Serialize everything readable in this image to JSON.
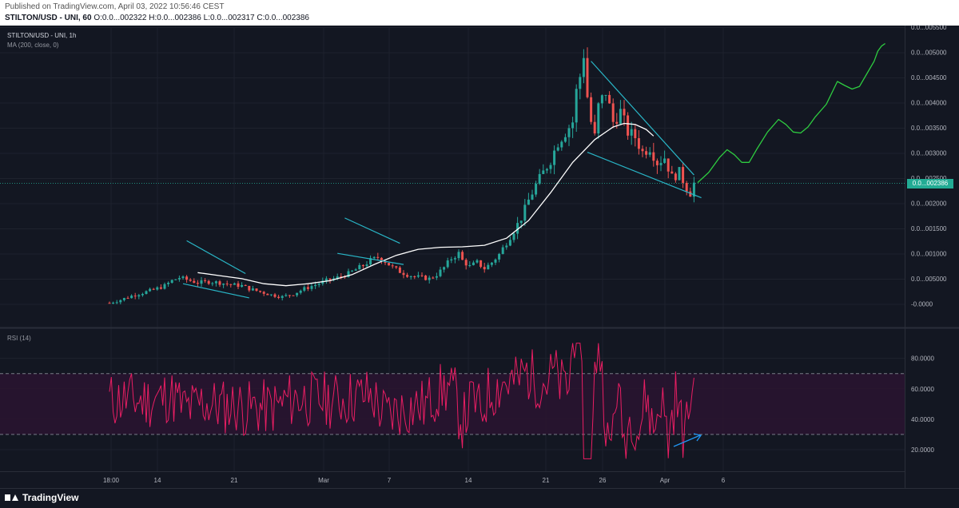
{
  "header": {
    "published": "Published on TradingView.com, April 03, 2022 10:56:46 CEST",
    "symbol": "STILTON/USD - UNI, 60",
    "ohlc": "O:0.0...002322 H:0.0...002386 L:0.0...002317 C:0.0...002386"
  },
  "price_pane": {
    "title": "STILTON/USD - UNI, 1h",
    "ma_legend": "MA (200, close, 0)",
    "last_price_label": "0.0...002386"
  },
  "rsi_pane": {
    "legend": "RSI (14)"
  },
  "footer": {
    "brand": "TradingView"
  },
  "colors": {
    "background": "#131722",
    "candle_up": "#26a69a",
    "candle_down": "#ef5350",
    "ma_line": "#ffffff",
    "trendlines": "#29b6c7",
    "projection": "#2ecc40",
    "rsi_line": "#e91e63",
    "rsi_band": "#2a1430",
    "price_badge": "#22ab94"
  },
  "chart_data": [
    {
      "type": "candlestick",
      "title": "STILTON/USD - UNI, 1h",
      "y_tick_labels": [
        "0.0...005500",
        "0.0...005000",
        "0.0...004500",
        "0.0...004000",
        "0.0...003500",
        "0.0...003000",
        "0.0...002500",
        "0.0...002000",
        "0.0...001500",
        "0.0...001000",
        "0.0...005000",
        "-0.0000"
      ],
      "x_tick_labels": [
        "18:00",
        "14",
        "21",
        "Mar",
        "7",
        "14",
        "21",
        "26",
        "Apr",
        "6"
      ],
      "price_path": [
        [
          0,
          0.02
        ],
        [
          3,
          0.08
        ],
        [
          6,
          0.16
        ],
        [
          9,
          0.22
        ],
        [
          12,
          0.28
        ],
        [
          15,
          0.36
        ],
        [
          17,
          0.46
        ],
        [
          19,
          0.52
        ],
        [
          21,
          0.48
        ],
        [
          24,
          0.42
        ],
        [
          27,
          0.44
        ],
        [
          30,
          0.42
        ],
        [
          33,
          0.38
        ],
        [
          36,
          0.36
        ],
        [
          38,
          0.3
        ],
        [
          41,
          0.24
        ],
        [
          44,
          0.18
        ],
        [
          47,
          0.14
        ],
        [
          50,
          0.2
        ],
        [
          53,
          0.3
        ],
        [
          56,
          0.38
        ],
        [
          59,
          0.46
        ],
        [
          62,
          0.52
        ],
        [
          65,
          0.6
        ],
        [
          67,
          0.68
        ],
        [
          69,
          0.76
        ],
        [
          71,
          0.86
        ],
        [
          73,
          0.92
        ],
        [
          75,
          0.84
        ],
        [
          77,
          0.72
        ],
        [
          79,
          0.64
        ],
        [
          81,
          0.58
        ],
        [
          83,
          0.54
        ],
        [
          85,
          0.52
        ],
        [
          87,
          0.5
        ],
        [
          89,
          0.58
        ],
        [
          91,
          0.72
        ],
        [
          93,
          0.9
        ],
        [
          95,
          1.0
        ],
        [
          96,
          0.86
        ],
        [
          98,
          0.74
        ],
        [
          100,
          0.82
        ],
        [
          102,
          0.7
        ],
        [
          104,
          0.82
        ],
        [
          106,
          0.98
        ],
        [
          108,
          1.22
        ],
        [
          110,
          1.45
        ],
        [
          112,
          1.7
        ],
        [
          114,
          2.05
        ],
        [
          116,
          2.35
        ],
        [
          118,
          2.6
        ],
        [
          120,
          2.85
        ],
        [
          122,
          3.2
        ],
        [
          124,
          3.4
        ],
        [
          126,
          3.6
        ],
        [
          127,
          4.2
        ],
        [
          128,
          4.5
        ],
        [
          129,
          4.95
        ],
        [
          130,
          4.1
        ],
        [
          131,
          3.6
        ],
        [
          132,
          3.3
        ],
        [
          133,
          3.9
        ],
        [
          135,
          4.2
        ],
        [
          137,
          3.6
        ],
        [
          139,
          3.8
        ],
        [
          141,
          3.4
        ],
        [
          143,
          3.3
        ],
        [
          145,
          3.0
        ],
        [
          147,
          3.1
        ],
        [
          149,
          2.8
        ],
        [
          151,
          2.9
        ],
        [
          153,
          2.5
        ],
        [
          155,
          2.6
        ],
        [
          157,
          2.3
        ],
        [
          158,
          2.2
        ],
        [
          159,
          2.386
        ]
      ],
      "ma_200": [
        [
          24,
          0.62
        ],
        [
          30,
          0.56
        ],
        [
          36,
          0.5
        ],
        [
          42,
          0.4
        ],
        [
          48,
          0.36
        ],
        [
          54,
          0.4
        ],
        [
          60,
          0.46
        ],
        [
          66,
          0.58
        ],
        [
          72,
          0.78
        ],
        [
          78,
          0.96
        ],
        [
          84,
          1.08
        ],
        [
          90,
          1.12
        ],
        [
          96,
          1.13
        ],
        [
          102,
          1.16
        ],
        [
          108,
          1.3
        ],
        [
          114,
          1.65
        ],
        [
          120,
          2.2
        ],
        [
          126,
          2.8
        ],
        [
          132,
          3.25
        ],
        [
          137,
          3.5
        ],
        [
          140,
          3.57
        ],
        [
          143,
          3.55
        ],
        [
          146,
          3.45
        ],
        [
          148,
          3.32
        ]
      ],
      "projection": [
        [
          160,
          2.4
        ],
        [
          163,
          2.6
        ],
        [
          166,
          2.9
        ],
        [
          168,
          3.05
        ],
        [
          170,
          2.95
        ],
        [
          172,
          2.8
        ],
        [
          174,
          2.8
        ],
        [
          176,
          3.05
        ],
        [
          179,
          3.4
        ],
        [
          182,
          3.65
        ],
        [
          184,
          3.55
        ],
        [
          186,
          3.4
        ],
        [
          188,
          3.38
        ],
        [
          190,
          3.5
        ],
        [
          192,
          3.7
        ],
        [
          195,
          3.95
        ],
        [
          197,
          4.25
        ],
        [
          198,
          4.4
        ],
        [
          200,
          4.32
        ],
        [
          202,
          4.25
        ],
        [
          204,
          4.3
        ],
        [
          206,
          4.55
        ],
        [
          208,
          4.8
        ],
        [
          209,
          5.0
        ],
        [
          210,
          5.1
        ],
        [
          211,
          5.15
        ]
      ],
      "trendlines": [
        [
          [
            21,
            1.25
          ],
          [
            37,
            0.6
          ]
        ],
        [
          [
            20,
            0.4
          ],
          [
            38,
            0.12
          ]
        ],
        [
          [
            64,
            1.7
          ],
          [
            79,
            1.2
          ]
        ],
        [
          [
            62,
            1.0
          ],
          [
            80,
            0.78
          ]
        ],
        [
          [
            131,
            4.8
          ],
          [
            159,
            2.55
          ]
        ],
        [
          [
            130,
            3.0
          ],
          [
            161,
            2.1
          ]
        ]
      ],
      "last_price": 0.002386,
      "grid": true
    },
    {
      "type": "line",
      "title": "RSI (14)",
      "y_tick_labels": [
        "80.0000",
        "60.0000",
        "40.0000",
        "20.0000"
      ],
      "ylim": [
        10,
        92
      ],
      "band": [
        30,
        70
      ],
      "grid": true
    }
  ]
}
